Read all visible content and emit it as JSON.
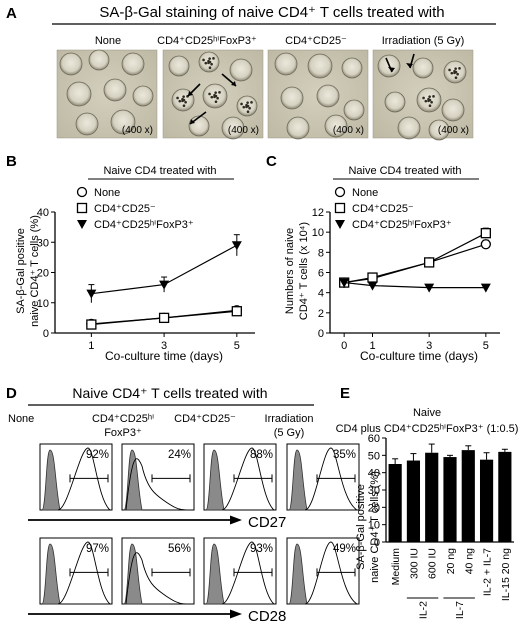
{
  "panelA": {
    "letter": "A",
    "title": "SA-β-Gal staining of naive CD4⁺ T cells treated with",
    "labels": [
      "None",
      "CD4⁺CD25ʰⁱFoxP3⁺",
      "CD4⁺CD25⁻",
      "Irradiation (5 Gy)"
    ],
    "magnification": "(400 x)"
  },
  "chart_data": [
    {
      "panel": "B",
      "type": "line",
      "title": "Naive CD4 treated with",
      "xlabel": "Co-culture time (days)",
      "ylabel": "SA-β-Gal positive naive CD4⁺ T cells (%)",
      "x": [
        1,
        3,
        5
      ],
      "xticks": [
        "1",
        "3",
        "5"
      ],
      "xlim": [
        0,
        5.5
      ],
      "ylim": [
        0,
        40
      ],
      "yticks": [
        0,
        10,
        20,
        30,
        40
      ],
      "series": [
        {
          "name": "None",
          "marker": "circle",
          "values": [
            3,
            5,
            7.5
          ],
          "errors": [
            1,
            0.8,
            1
          ]
        },
        {
          "name": "CD4⁺CD25⁻",
          "marker": "square",
          "values": [
            2.8,
            5,
            7.2
          ],
          "errors": [
            1,
            0.8,
            1
          ]
        },
        {
          "name": "CD4⁺CD25ʰⁱFoxP3⁺",
          "marker": "triangle-down",
          "values": [
            13,
            16,
            29
          ],
          "errors": [
            3,
            2.5,
            3.5
          ]
        }
      ]
    },
    {
      "panel": "C",
      "type": "line",
      "title": "Naive CD4 treated with",
      "xlabel": "Co-culture time (days)",
      "ylabel": "Numbers of naive CD4⁺ T cells (x 10⁴)",
      "x": [
        0,
        1,
        3,
        5
      ],
      "xticks": [
        "0",
        "1",
        "3",
        "5"
      ],
      "xlim": [
        -0.5,
        5.5
      ],
      "ylim": [
        0,
        12
      ],
      "yticks": [
        0,
        2,
        4,
        6,
        8,
        10,
        12
      ],
      "series": [
        {
          "name": "None",
          "marker": "circle",
          "values": [
            5,
            5.4,
            7,
            8.8
          ],
          "errors": [
            0.3,
            0.3,
            0.3,
            0.4
          ]
        },
        {
          "name": "CD4⁺CD25⁻",
          "marker": "square",
          "values": [
            5,
            5.5,
            7,
            9.9
          ],
          "errors": [
            0.3,
            0.3,
            0.3,
            0.5
          ]
        },
        {
          "name": "CD4⁺CD25ʰⁱFoxP3⁺",
          "marker": "triangle-down",
          "values": [
            5,
            4.7,
            4.5,
            4.5
          ],
          "errors": [
            0.2,
            0.2,
            0.2,
            0.2
          ]
        }
      ]
    },
    {
      "panel": "E",
      "type": "bar",
      "title": "Naive CD4 plus CD4⁺CD25ʰⁱFoxP3⁺ (1:0.5)",
      "ylabel": "SA-β-Gal positive naive CD4⁺ T cells (%)",
      "categories": [
        "Medium",
        "300 IU",
        "600 IU",
        "20 ng",
        "40 ng",
        "IL-2 + IL-7",
        "IL-15 20 ng"
      ],
      "groups": [
        {
          "label": "IL-2",
          "from": 1,
          "to": 2
        },
        {
          "label": "IL-7",
          "from": 3,
          "to": 4
        }
      ],
      "values": [
        45,
        47,
        51.5,
        49,
        53,
        47.5,
        52
      ],
      "errors": [
        3,
        4,
        5,
        1,
        2.5,
        4,
        1.5
      ],
      "ylim": [
        0,
        60
      ],
      "yticks": [
        0,
        10,
        20,
        30,
        40,
        50,
        60
      ]
    }
  ],
  "panelD": {
    "letter": "D",
    "title": "Naive CD4⁺ T cells treated with",
    "col1": "None",
    "col2a": "CD4⁺CD25ʰⁱ",
    "col2b": "FoxP3⁺",
    "col3": "CD4⁺CD25⁻",
    "col4a": "Irradiation",
    "col4b": "(5 Gy)",
    "rows": [
      {
        "marker": "CD27",
        "percents": [
          "92%",
          "24%",
          "88%",
          "35%"
        ]
      },
      {
        "marker": "CD28",
        "percents": [
          "97%",
          "56%",
          "93%",
          "49%"
        ]
      }
    ]
  },
  "letters": {
    "b": "B",
    "c": "C",
    "e": "E"
  },
  "colors": {
    "ink": "#000000",
    "isotype_fill": "#8a8a8a",
    "bar": "#000000",
    "micro_bg": "#c9c5b0"
  }
}
